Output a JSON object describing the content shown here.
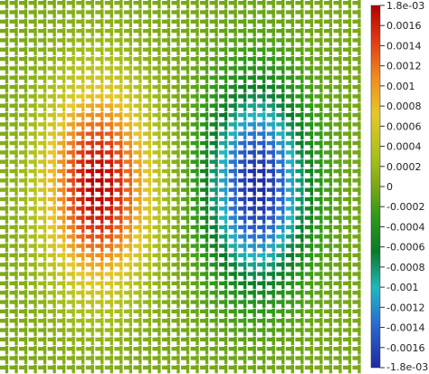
{
  "chart_data": {
    "type": "heatmap",
    "title": "",
    "xlabel": "",
    "ylabel": "",
    "colormap": "jet-like (dark blue → cyan → green → yellow → orange → dark red)",
    "grid_pattern": "lattice of thin horizontal and vertical strips on white background",
    "range": [
      -0.0018,
      0.0018
    ],
    "colorbar": {
      "placement": "right",
      "ticks": [
        {
          "value": 0.0018,
          "label": "1.8e-03"
        },
        {
          "value": 0.0016,
          "label": "0.0016"
        },
        {
          "value": 0.0014,
          "label": "0.0014"
        },
        {
          "value": 0.0012,
          "label": "0.0012"
        },
        {
          "value": 0.001,
          "label": "0.001"
        },
        {
          "value": 0.0008,
          "label": "0.0008"
        },
        {
          "value": 0.0006,
          "label": "0.0006"
        },
        {
          "value": 0.0004,
          "label": "0.0004"
        },
        {
          "value": 0.0002,
          "label": "0.0002"
        },
        {
          "value": 0,
          "label": "0"
        },
        {
          "value": -0.0002,
          "label": "-0.0002"
        },
        {
          "value": -0.0004,
          "label": "-0.0004"
        },
        {
          "value": -0.0006,
          "label": "-0.0006"
        },
        {
          "value": -0.0008,
          "label": "-0.0008"
        },
        {
          "value": -0.001,
          "label": "-0.001"
        },
        {
          "value": -0.0012,
          "label": "-0.0012"
        },
        {
          "value": -0.0014,
          "label": "-0.0014"
        },
        {
          "value": -0.0016,
          "label": "-0.0016"
        },
        {
          "value": -0.0018,
          "label": "-1.8e-03"
        }
      ]
    },
    "regions": [
      {
        "name": "positive-lobe",
        "center": [
          0.27,
          0.5
        ],
        "spread": [
          0.18,
          0.33
        ],
        "peak": 0.0018
      },
      {
        "name": "negative-lobe",
        "center": [
          0.71,
          0.5
        ],
        "spread": [
          0.17,
          0.32
        ],
        "peak": -0.0018
      }
    ]
  }
}
